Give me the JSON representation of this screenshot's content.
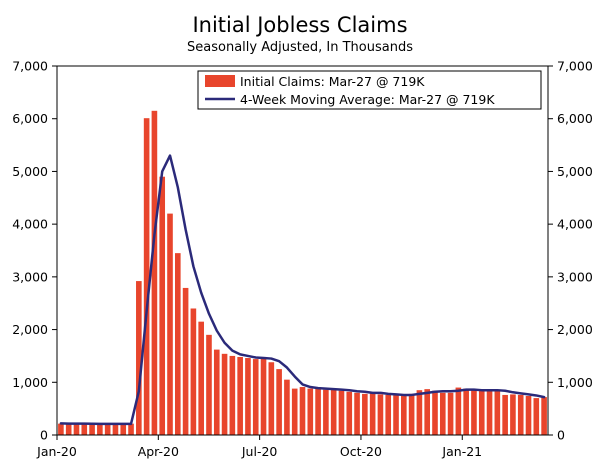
{
  "chart_data": {
    "type": "bar",
    "title": "Initial Jobless Claims",
    "subtitle": "Seasonally Adjusted, In Thousands",
    "xlabel": "",
    "ylabel": "",
    "ylim": [
      0,
      7000
    ],
    "y_ticks": [
      0,
      1000,
      2000,
      3000,
      4000,
      5000,
      6000,
      7000
    ],
    "y_tick_labels": [
      "0",
      "1,000",
      "2,000",
      "3,000",
      "4,000",
      "5,000",
      "6,000",
      "7,000"
    ],
    "x_tick_labels": [
      {
        "label": "Jan-20",
        "index": 0
      },
      {
        "label": "Apr-20",
        "index": 13
      },
      {
        "label": "Jul-20",
        "index": 26
      },
      {
        "label": "Oct-20",
        "index": 39
      },
      {
        "label": "Jan-21",
        "index": 52
      }
    ],
    "grid": false,
    "legend_position": "top-right",
    "colors": {
      "bars": "#e8452c",
      "line": "#2b2a7a",
      "axis": "#000000"
    },
    "series": [
      {
        "name": "Initial Claims: Mar-27 @ 719K",
        "type": "bar",
        "values": [
          215,
          210,
          215,
          210,
          210,
          205,
          210,
          215,
          210,
          215,
          2920,
          6010,
          6150,
          4900,
          4200,
          3450,
          2790,
          2400,
          2150,
          1900,
          1620,
          1540,
          1500,
          1480,
          1460,
          1440,
          1480,
          1380,
          1250,
          1050,
          880,
          910,
          880,
          890,
          860,
          860,
          840,
          820,
          800,
          780,
          790,
          770,
          760,
          760,
          760,
          780,
          850,
          870,
          840,
          800,
          800,
          900,
          880,
          860,
          850,
          840,
          860,
          760,
          770,
          760,
          740,
          700,
          719
        ]
      },
      {
        "name": "4-Week Moving Average: Mar-27 @ 719K",
        "type": "line",
        "values": [
          220,
          215,
          215,
          215,
          213,
          212,
          210,
          210,
          212,
          212,
          830,
          2350,
          3800,
          5000,
          5300,
          4700,
          3900,
          3200,
          2700,
          2300,
          1980,
          1750,
          1600,
          1530,
          1500,
          1470,
          1460,
          1450,
          1400,
          1280,
          1110,
          960,
          910,
          890,
          880,
          870,
          860,
          850,
          830,
          820,
          800,
          800,
          780,
          770,
          760,
          760,
          780,
          800,
          820,
          830,
          830,
          840,
          860,
          860,
          850,
          850,
          850,
          840,
          810,
          790,
          770,
          750,
          719
        ]
      }
    ]
  }
}
